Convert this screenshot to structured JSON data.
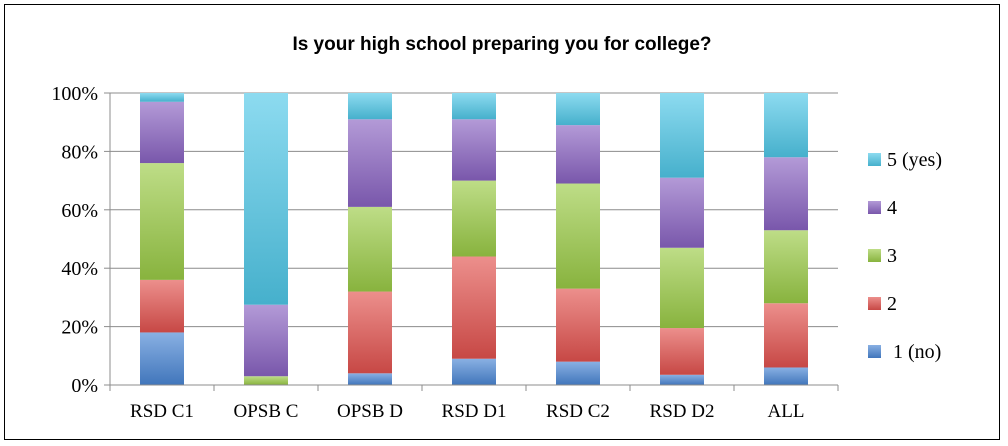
{
  "chart_data": {
    "type": "bar",
    "stacked": true,
    "percent": true,
    "title": "Is your high school preparing you for college?",
    "xlabel": "",
    "ylabel": "",
    "ylim": [
      0,
      100
    ],
    "yticks": [
      "0%",
      "20%",
      "40%",
      "60%",
      "80%",
      "100%"
    ],
    "grid": true,
    "legend_position": "right",
    "categories": [
      "RSD C1",
      "OPSB C",
      "OPSB D",
      "RSD D1",
      "RSD C2",
      "RSD D2",
      "ALL"
    ],
    "series": [
      {
        "name": "1 (no)",
        "color": "#4a86d4",
        "values": [
          18,
          0,
          4,
          9,
          8,
          3.5,
          6
        ]
      },
      {
        "name": "2",
        "color": "#e2524e",
        "values": [
          18,
          0,
          28,
          35,
          25,
          16,
          22
        ]
      },
      {
        "name": "3",
        "color": "#9bcb47",
        "values": [
          40,
          3,
          29,
          26,
          36,
          27.5,
          25
        ]
      },
      {
        "name": "4",
        "color": "#8a63c2",
        "values": [
          21,
          24.5,
          30,
          21,
          20,
          24,
          25
        ]
      },
      {
        "name": "5 (yes)",
        "color": "#4fc8e8",
        "values": [
          3,
          72.5,
          9,
          9,
          11,
          29,
          22
        ]
      }
    ]
  }
}
